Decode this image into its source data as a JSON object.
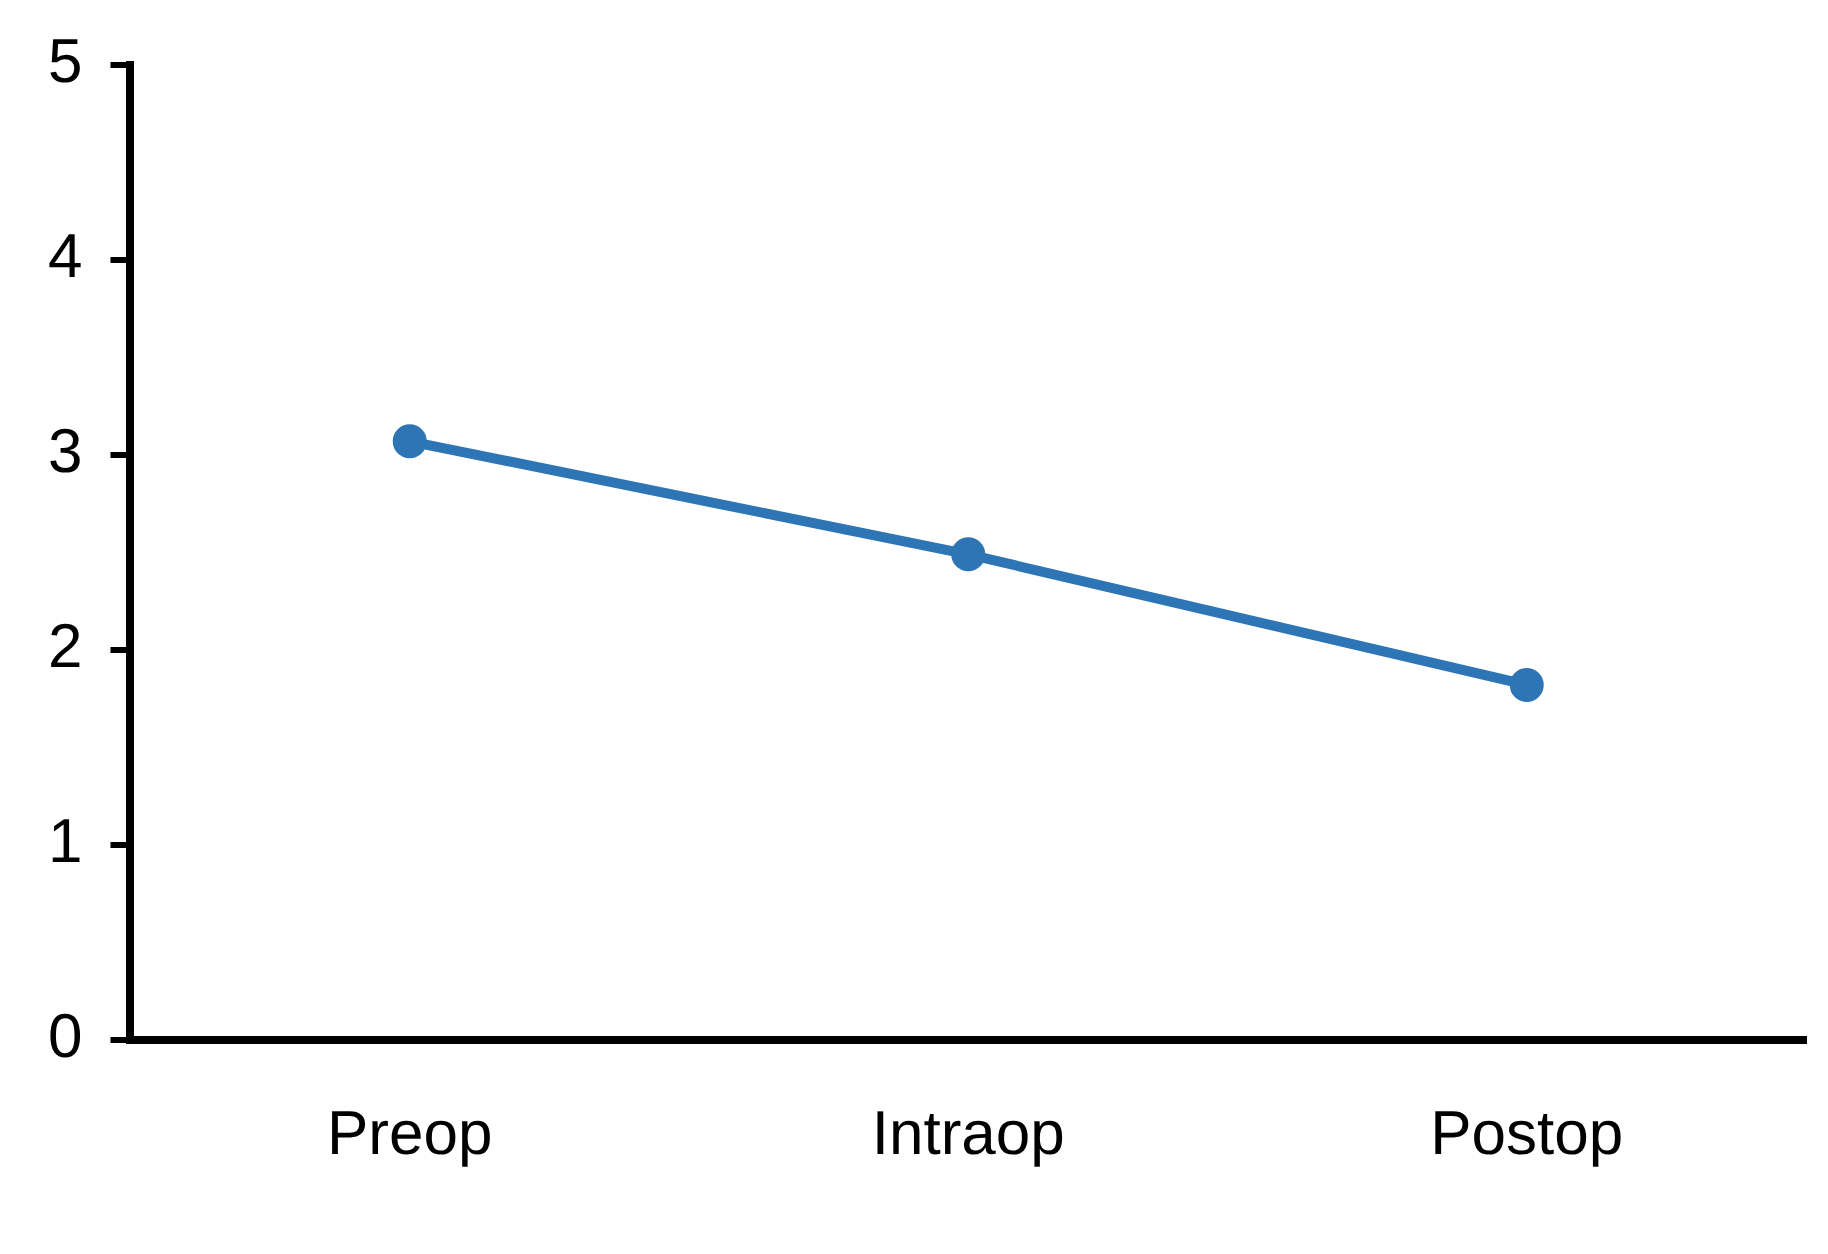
{
  "chart_data": {
    "type": "line",
    "categories": [
      "Preop",
      "Intraop",
      "Postop"
    ],
    "series": [
      {
        "color": "#2e75b6",
        "values": [
          3.07,
          2.49,
          1.82
        ]
      }
    ],
    "ylim": [
      0,
      5
    ],
    "yticks": [
      0,
      1,
      2,
      3,
      4,
      5
    ],
    "grid": false,
    "legend": false,
    "marker": "circle",
    "line_style": "solid"
  }
}
